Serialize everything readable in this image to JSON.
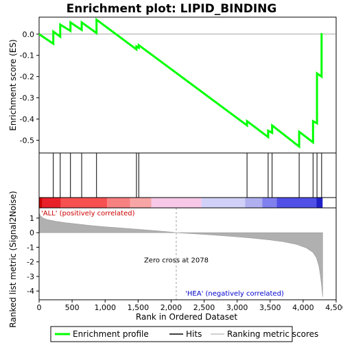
{
  "chart_data": {
    "type": "line",
    "title": "Enrichment plot: LIPID_BINDING",
    "xlabel": "Rank in Ordered Dataset",
    "ylabel_top": "Enrichment score (ES)",
    "ylabel_bottom": "Ranked list metric (Signal2Noise)",
    "xlim": [
      0,
      4500
    ],
    "es_ylim": [
      -0.56,
      0.08
    ],
    "metric_ylim": [
      -4.6,
      1.7
    ],
    "x_ticks": [
      0,
      500,
      1000,
      1500,
      2000,
      2500,
      3000,
      3500,
      4000,
      4500
    ],
    "x_tick_labels": [
      "0",
      "500",
      "1,000",
      "1,500",
      "2,000",
      "2,500",
      "3,000",
      "3,500",
      "4,000",
      "4,500"
    ],
    "es_ticks": [
      0.0,
      -0.1,
      -0.2,
      -0.3,
      -0.4,
      -0.5
    ],
    "es_tick_labels": [
      "0.0",
      "-0.1",
      "-0.2",
      "-0.3",
      "-0.4",
      "-0.5"
    ],
    "metric_ticks": [
      1,
      0,
      -1,
      -2,
      -3,
      -4
    ],
    "metric_tick_labels": [
      "1",
      "0",
      "-1",
      "-2",
      "-3",
      "-4"
    ],
    "enrichment_profile": {
      "x": [
        0,
        215,
        215,
        320,
        320,
        475,
        475,
        645,
        645,
        870,
        870,
        1475,
        1475,
        1510,
        1510,
        3150,
        3150,
        3470,
        3470,
        3530,
        3530,
        3940,
        3940,
        4150,
        4150,
        4210,
        4210,
        4280,
        4280
      ],
      "y": [
        0.0,
        -0.045,
        0.012,
        -0.012,
        0.045,
        0.015,
        0.055,
        0.02,
        0.055,
        0.005,
        0.068,
        -0.072,
        -0.058,
        -0.064,
        -0.052,
        -0.43,
        -0.41,
        -0.485,
        -0.455,
        -0.465,
        -0.43,
        -0.53,
        -0.46,
        -0.51,
        -0.41,
        -0.42,
        -0.185,
        -0.2,
        0.005
      ]
    },
    "hits": [
      215,
      320,
      475,
      645,
      870,
      1475,
      1510,
      3150,
      3470,
      3530,
      3940,
      4150,
      4210,
      4280
    ],
    "metric_curve": {
      "x": [
        0,
        20,
        60,
        120,
        250,
        400,
        600,
        800,
        1000,
        1200,
        1400,
        1600,
        1800,
        2000,
        2078,
        2300,
        2600,
        2900,
        3200,
        3500,
        3700,
        3900,
        4050,
        4150,
        4200,
        4240,
        4260,
        4280,
        4295
      ],
      "y": [
        1.35,
        1.15,
        1.0,
        0.9,
        0.78,
        0.68,
        0.58,
        0.48,
        0.4,
        0.33,
        0.26,
        0.19,
        0.12,
        0.04,
        0.0,
        -0.06,
        -0.15,
        -0.25,
        -0.36,
        -0.5,
        -0.62,
        -0.8,
        -1.05,
        -1.35,
        -1.7,
        -2.3,
        -2.9,
        -3.6,
        -4.4
      ]
    },
    "color_bar": [
      {
        "x0": 0,
        "x1": 50,
        "color": "#cc0000"
      },
      {
        "x0": 50,
        "x1": 330,
        "color": "#e8202a"
      },
      {
        "x0": 330,
        "x1": 1030,
        "color": "#f65050"
      },
      {
        "x0": 1030,
        "x1": 1380,
        "color": "#f78080"
      },
      {
        "x0": 1380,
        "x1": 1700,
        "color": "#f8a5a5"
      },
      {
        "x0": 1700,
        "x1": 2460,
        "color": "#f8c8e8"
      },
      {
        "x0": 2460,
        "x1": 3120,
        "color": "#d0d0f8"
      },
      {
        "x0": 3120,
        "x1": 3380,
        "color": "#b0b0f0"
      },
      {
        "x0": 3380,
        "x1": 3600,
        "color": "#8080ee"
      },
      {
        "x0": 3600,
        "x1": 4200,
        "color": "#5050e6"
      },
      {
        "x0": 4200,
        "x1": 4295,
        "color": "#2020c8"
      }
    ],
    "zero_cross": 2078,
    "annotations": {
      "positive": "'ALL' (positively correlated)",
      "negative": "'HEA' (negatively correlated)",
      "zero_cross": "Zero cross at 2078"
    },
    "legend": {
      "placement": "bottom",
      "entries": [
        {
          "label": "Enrichment profile",
          "color": "#00ff00",
          "style": "line"
        },
        {
          "label": "Hits",
          "color": "#000000",
          "style": "line"
        },
        {
          "label": "Ranking metric scores",
          "color": "#c0c0c0",
          "style": "line"
        }
      ]
    },
    "colors": {
      "es_line": "#00ff00",
      "metric_fill": "#b0b0b0",
      "positive_text": "#cc0000",
      "negative_text": "#0000cc",
      "zero_line": "#a0a0a0"
    }
  }
}
